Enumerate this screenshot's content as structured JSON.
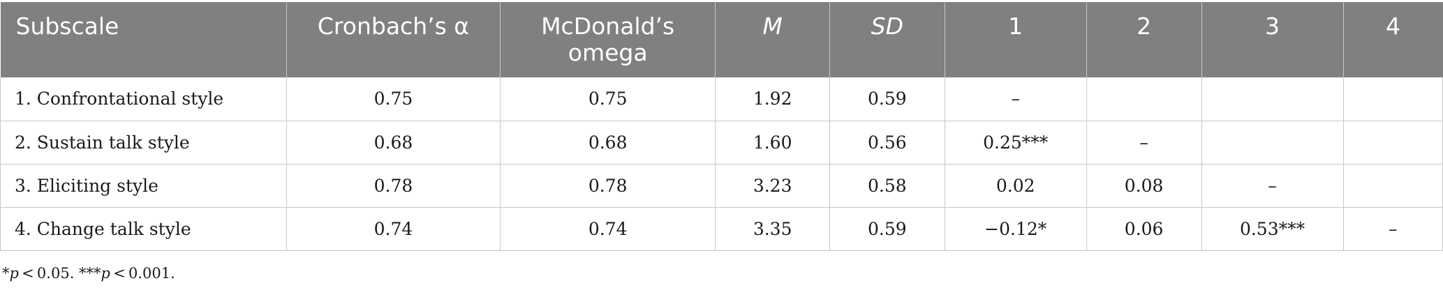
{
  "table": {
    "headers": [
      "Subscale",
      "Cronbach’s α",
      "McDonald’s omega",
      "M",
      "SD",
      "1",
      "2",
      "3",
      "4"
    ],
    "rows": [
      [
        "1. Confrontational style",
        "0.75",
        "0.75",
        "1.92",
        "0.59",
        "–",
        "",
        "",
        ""
      ],
      [
        "2. Sustain talk style",
        "0.68",
        "0.68",
        "1.60",
        "0.56",
        "0.25***",
        "–",
        "",
        ""
      ],
      [
        "3. Eliciting style",
        "0.78",
        "0.78",
        "3.23",
        "0.58",
        "0.02",
        "0.08",
        "–",
        ""
      ],
      [
        "4. Change talk style",
        "0.74",
        "0.74",
        "3.35",
        "0.59",
        "−0.12*",
        "0.06",
        "0.53***",
        "–"
      ]
    ]
  },
  "note": {
    "part1_prefix": "*",
    "part1_p": "p",
    "part1_rest": " < 0.05. ***",
    "part2_p": "p",
    "part2_rest": " < 0.001."
  }
}
